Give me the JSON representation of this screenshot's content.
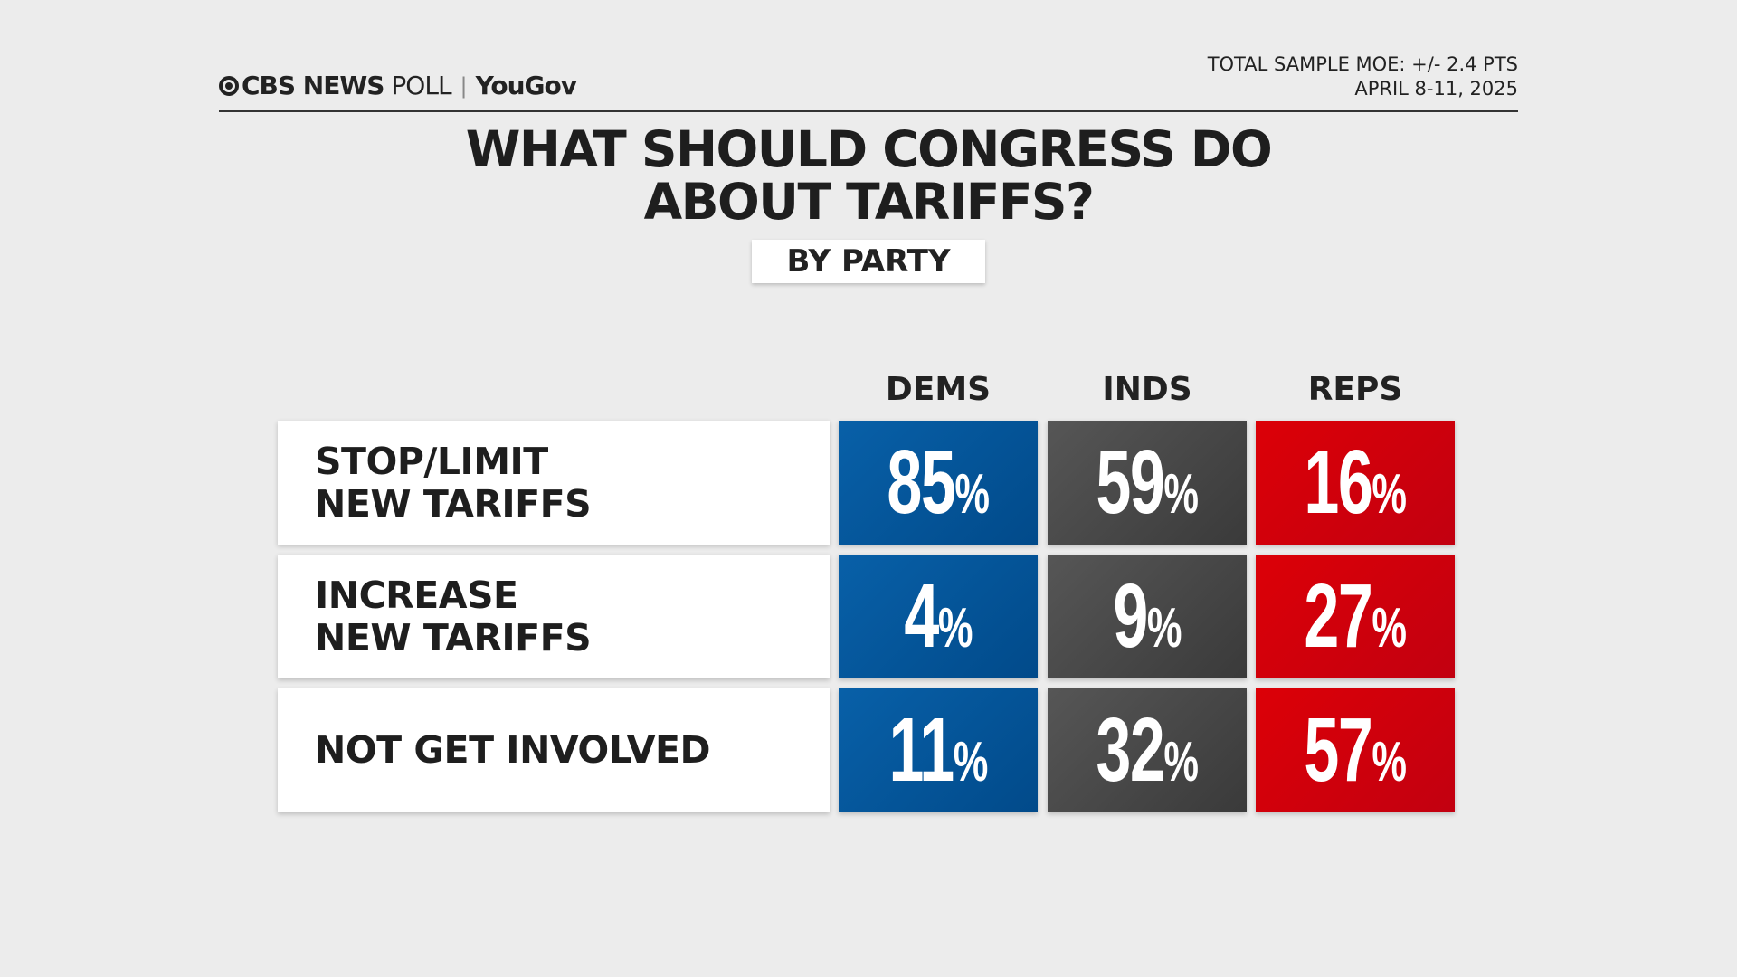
{
  "header": {
    "brand": "CBS NEWS",
    "brand_suffix": "POLL",
    "partner": "YouGov",
    "moe": "TOTAL SAMPLE MOE: +/- 2.4 PTS",
    "dates": "APRIL 8-11, 2025"
  },
  "chart_data": {
    "type": "table",
    "title": [
      "WHAT SHOULD CONGRESS DO",
      "ABOUT TARIFFS?"
    ],
    "subtitle": "BY PARTY",
    "columns": [
      "DEMS",
      "INDS",
      "REPS"
    ],
    "column_colors": [
      "#0156a0",
      "#474747",
      "#d10009"
    ],
    "rows": [
      {
        "label": [
          "STOP/LIMIT",
          "NEW TARIFFS"
        ],
        "values": [
          85,
          59,
          16
        ]
      },
      {
        "label": [
          "INCREASE",
          "NEW TARIFFS"
        ],
        "values": [
          4,
          9,
          27
        ]
      },
      {
        "label": [
          "NOT GET INVOLVED"
        ],
        "values": [
          11,
          32,
          57
        ]
      }
    ],
    "unit": "%"
  }
}
